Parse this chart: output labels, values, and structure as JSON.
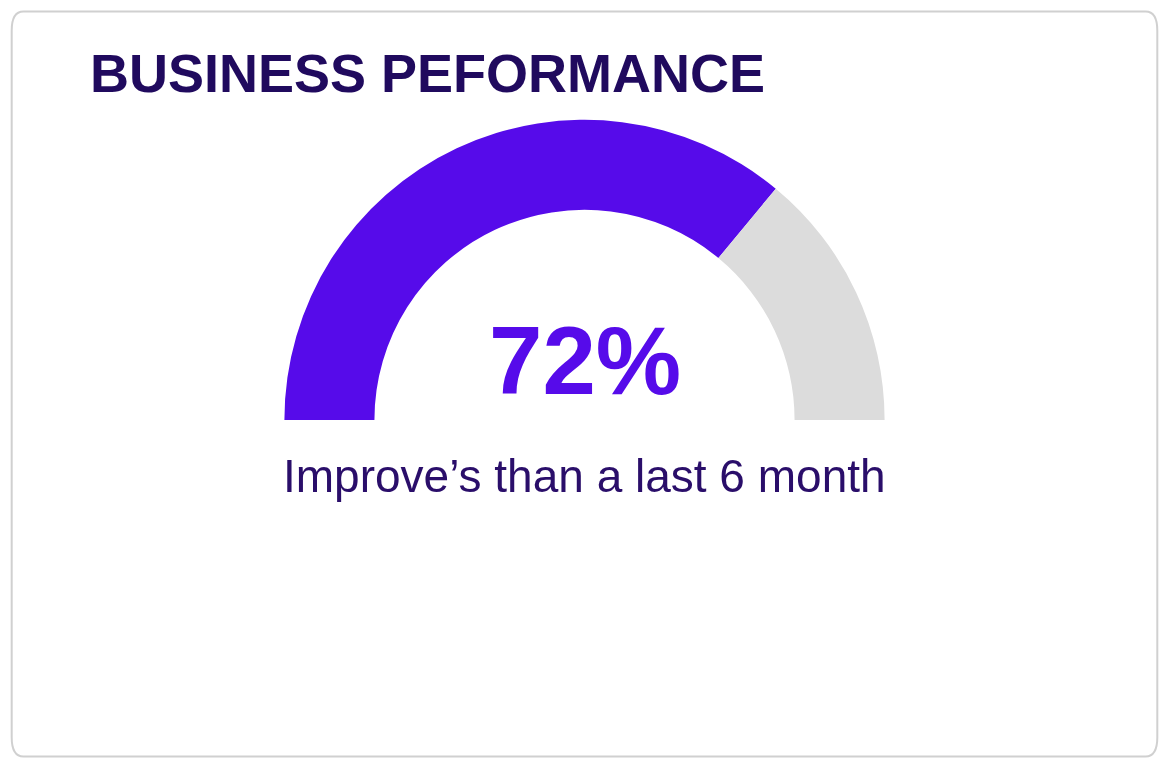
{
  "chart_data": {
    "type": "donut",
    "title": "BUSINESS PEFORMANCE",
    "categories": [
      null,
      null
    ],
    "values": [
      72,
      28
    ],
    "colors": [
      "#560bea",
      "#dcdcdc"
    ],
    "annotations": [
      "72%",
      "Improve’s than a last 6 month"
    ]
  }
}
